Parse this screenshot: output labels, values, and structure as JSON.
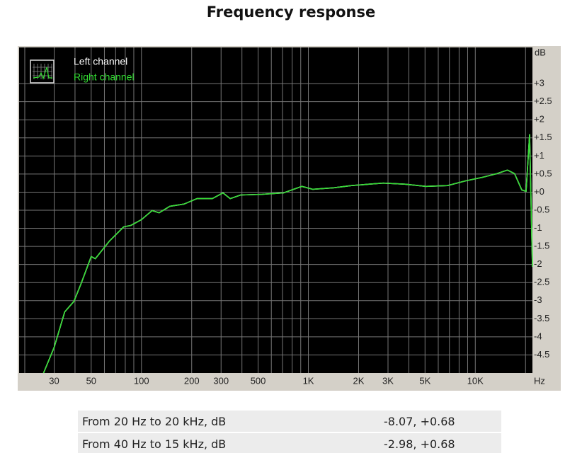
{
  "chart_data": {
    "type": "line",
    "title": "Frequency response",
    "y_unit": "dB",
    "x_unit": "Hz",
    "xscale": "log",
    "grid": true,
    "legend": "top-left",
    "xlim": [
      18.5,
      22000
    ],
    "ylim": [
      -5,
      4
    ],
    "xticks": [
      30,
      50,
      100,
      200,
      300,
      500,
      {
        "value": 1000,
        "label": "1K"
      },
      {
        "value": 2000,
        "label": "2K"
      },
      {
        "value": 3000,
        "label": "3K"
      },
      {
        "value": 5000,
        "label": "5K"
      },
      {
        "value": 10000,
        "label": "10K"
      }
    ],
    "xgrid": [
      20,
      40,
      60,
      70,
      80,
      90,
      400,
      600,
      700,
      800,
      900,
      4000,
      6000,
      7000,
      8000,
      9000,
      20000
    ],
    "yticks": [
      {
        "value": 3,
        "label": "+3"
      },
      {
        "value": 2.5,
        "label": "+2.5"
      },
      {
        "value": 2,
        "label": "+2"
      },
      {
        "value": 1.5,
        "label": "+1.5"
      },
      {
        "value": 1,
        "label": "+1"
      },
      {
        "value": 0.5,
        "label": "+0.5"
      },
      {
        "value": 0,
        "label": "+0"
      },
      -0.5,
      -1,
      -1.5,
      -2,
      -2.5,
      -3,
      -3.5,
      -4,
      -4.5
    ],
    "x": [
      25.9,
      30,
      34.7,
      39.4,
      43.5,
      50,
      52.9,
      64.4,
      78.3,
      86.3,
      100,
      115.8,
      127.7,
      148,
      180,
      215,
      266,
      308,
      340,
      393,
      530,
      710,
      915,
      1060,
      1420,
      1810,
      2310,
      2810,
      3780,
      5070,
      6820,
      8720,
      11040,
      13450,
      15600,
      17200,
      19000,
      20150,
      21150,
      22000
    ],
    "series": [
      {
        "name": "Left channel",
        "color": "#ffffff",
        "values": [
          -5.0,
          -4.29,
          -3.31,
          -3.02,
          -2.53,
          -1.78,
          -1.84,
          -1.35,
          -0.96,
          -0.92,
          -0.76,
          -0.51,
          -0.57,
          -0.39,
          -0.33,
          -0.18,
          -0.18,
          -0.02,
          -0.18,
          -0.08,
          -0.06,
          -0.02,
          0.16,
          0.08,
          0.12,
          0.18,
          0.22,
          0.25,
          0.22,
          0.16,
          0.18,
          0.31,
          0.41,
          0.51,
          0.61,
          0.51,
          0.06,
          0.02,
          1.59,
          -2.06
        ]
      },
      {
        "name": "Right channel",
        "color": "#33dd33",
        "values": [
          -5.0,
          -4.29,
          -3.31,
          -3.02,
          -2.53,
          -1.78,
          -1.84,
          -1.35,
          -0.96,
          -0.92,
          -0.76,
          -0.51,
          -0.57,
          -0.39,
          -0.33,
          -0.18,
          -0.18,
          -0.02,
          -0.18,
          -0.08,
          -0.06,
          -0.02,
          0.16,
          0.08,
          0.12,
          0.18,
          0.22,
          0.25,
          0.22,
          0.16,
          0.18,
          0.31,
          0.41,
          0.51,
          0.61,
          0.51,
          0.06,
          0.02,
          1.59,
          -2.06
        ]
      }
    ]
  },
  "table": {
    "rows": [
      [
        "From 20 Hz to 20 kHz, dB",
        "-8.07, +0.68"
      ],
      [
        "From 40 Hz to 15 kHz, dB",
        "-2.98, +0.68"
      ]
    ]
  }
}
